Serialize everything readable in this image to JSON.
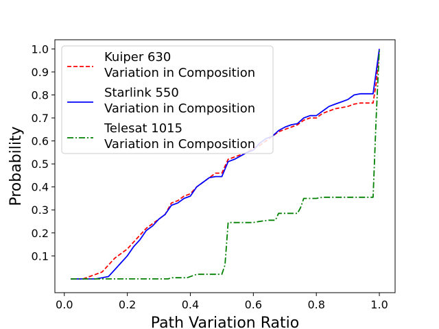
{
  "chart_data": {
    "type": "line",
    "xlabel": "Path Variation Ratio",
    "ylabel": "Probability",
    "xlim": [
      -0.03,
      1.05
    ],
    "ylim": [
      -0.06,
      1.04
    ],
    "xticks": [
      0.0,
      0.2,
      0.4,
      0.6,
      0.8,
      1.0
    ],
    "xtick_labels": [
      "0.0",
      "0.2",
      "0.4",
      "0.6",
      "0.8",
      "1.0"
    ],
    "yticks": [
      0.1,
      0.2,
      0.3,
      0.4,
      0.5,
      0.6,
      0.7,
      0.8,
      0.9,
      1.0
    ],
    "ytick_labels": [
      "0.1",
      "0.2",
      "0.3",
      "0.4",
      "0.5",
      "0.6",
      "0.7",
      "0.8",
      "0.9",
      "1.0"
    ],
    "grid": false,
    "legend_position": "top-left",
    "series": [
      {
        "name_line1": "Kuiper 630",
        "name_line2": "Variation in Composition",
        "color": "#ff0000",
        "style": "dashed",
        "x": [
          0.02,
          0.06,
          0.08,
          0.1,
          0.12,
          0.14,
          0.16,
          0.18,
          0.2,
          0.22,
          0.24,
          0.26,
          0.28,
          0.3,
          0.32,
          0.34,
          0.36,
          0.38,
          0.4,
          0.42,
          0.44,
          0.46,
          0.48,
          0.5,
          0.52,
          0.54,
          0.56,
          0.58,
          0.6,
          0.62,
          0.64,
          0.66,
          0.68,
          0.7,
          0.72,
          0.74,
          0.76,
          0.78,
          0.8,
          0.82,
          0.84,
          0.86,
          0.88,
          0.9,
          0.92,
          0.94,
          0.96,
          0.98,
          0.99,
          1.0
        ],
        "y": [
          0.0,
          0.0,
          0.01,
          0.02,
          0.03,
          0.06,
          0.09,
          0.11,
          0.13,
          0.16,
          0.19,
          0.22,
          0.24,
          0.26,
          0.28,
          0.33,
          0.34,
          0.36,
          0.37,
          0.4,
          0.42,
          0.44,
          0.46,
          0.46,
          0.52,
          0.53,
          0.54,
          0.55,
          0.57,
          0.58,
          0.6,
          0.62,
          0.64,
          0.65,
          0.66,
          0.67,
          0.69,
          0.7,
          0.7,
          0.72,
          0.73,
          0.74,
          0.745,
          0.75,
          0.76,
          0.765,
          0.765,
          0.765,
          0.85,
          1.0
        ]
      },
      {
        "name_line1": "Starlink 550",
        "name_line2": "Variation in Composition",
        "color": "#0000ff",
        "style": "solid",
        "x": [
          0.02,
          0.06,
          0.08,
          0.1,
          0.12,
          0.14,
          0.16,
          0.18,
          0.2,
          0.22,
          0.24,
          0.26,
          0.28,
          0.3,
          0.32,
          0.34,
          0.36,
          0.38,
          0.4,
          0.42,
          0.44,
          0.46,
          0.48,
          0.5,
          0.52,
          0.54,
          0.56,
          0.58,
          0.6,
          0.62,
          0.64,
          0.66,
          0.68,
          0.7,
          0.72,
          0.74,
          0.76,
          0.78,
          0.8,
          0.82,
          0.84,
          0.86,
          0.88,
          0.9,
          0.92,
          0.94,
          0.96,
          0.98,
          0.99,
          1.0
        ],
        "y": [
          0.0,
          0.0,
          0.0,
          0.0,
          0.005,
          0.01,
          0.04,
          0.07,
          0.1,
          0.14,
          0.17,
          0.21,
          0.23,
          0.26,
          0.28,
          0.32,
          0.33,
          0.35,
          0.36,
          0.4,
          0.42,
          0.44,
          0.445,
          0.445,
          0.51,
          0.52,
          0.535,
          0.55,
          0.56,
          0.59,
          0.61,
          0.62,
          0.645,
          0.66,
          0.67,
          0.675,
          0.7,
          0.71,
          0.71,
          0.73,
          0.75,
          0.76,
          0.77,
          0.78,
          0.8,
          0.805,
          0.805,
          0.805,
          0.9,
          1.0
        ]
      },
      {
        "name_line1": "Telesat 1015",
        "name_line2": "Variation in Composition",
        "color": "#008000",
        "style": "dashdot",
        "x": [
          0.02,
          0.3,
          0.33,
          0.34,
          0.39,
          0.42,
          0.43,
          0.5,
          0.51,
          0.52,
          0.6,
          0.62,
          0.65,
          0.67,
          0.68,
          0.74,
          0.75,
          0.76,
          0.8,
          0.82,
          0.86,
          0.98,
          0.99,
          1.0
        ],
        "y": [
          0.0,
          0.0,
          0.0,
          0.005,
          0.005,
          0.02,
          0.02,
          0.02,
          0.06,
          0.245,
          0.245,
          0.25,
          0.255,
          0.255,
          0.285,
          0.285,
          0.31,
          0.35,
          0.35,
          0.355,
          0.355,
          0.355,
          0.7,
          1.0
        ]
      }
    ]
  }
}
